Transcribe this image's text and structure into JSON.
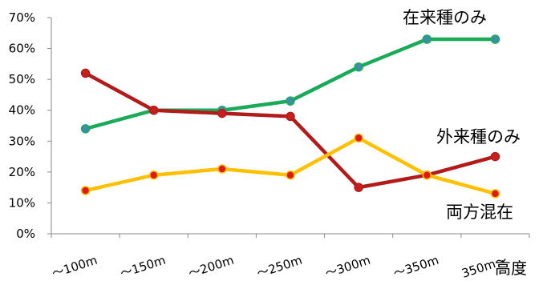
{
  "chart_data": {
    "type": "line",
    "categories": [
      "～100m",
      "～150m",
      "～200m",
      "～250m",
      "～300m",
      "～350m",
      "350m～"
    ],
    "xlabel": "高度",
    "ylabel": "",
    "ylim": [
      0,
      70
    ],
    "yticks": [
      "0%",
      "10%",
      "20%",
      "30%",
      "40%",
      "50%",
      "60%",
      "70%"
    ],
    "grid": false,
    "series": [
      {
        "name": "在来種のみ",
        "values": [
          34,
          40,
          40,
          43,
          54,
          63,
          63
        ],
        "color": "#1aab59",
        "marker_color": "#3d8ea8"
      },
      {
        "name": "外来種のみ",
        "values": [
          52,
          40,
          39,
          38,
          15,
          19,
          25
        ],
        "color": "#b31b1b",
        "marker_color": "#c81e1e"
      },
      {
        "name": "両方混在",
        "values": [
          14,
          19,
          21,
          19,
          31,
          19,
          13
        ],
        "color": "#ffc000",
        "marker_color": "#e01818"
      }
    ]
  }
}
